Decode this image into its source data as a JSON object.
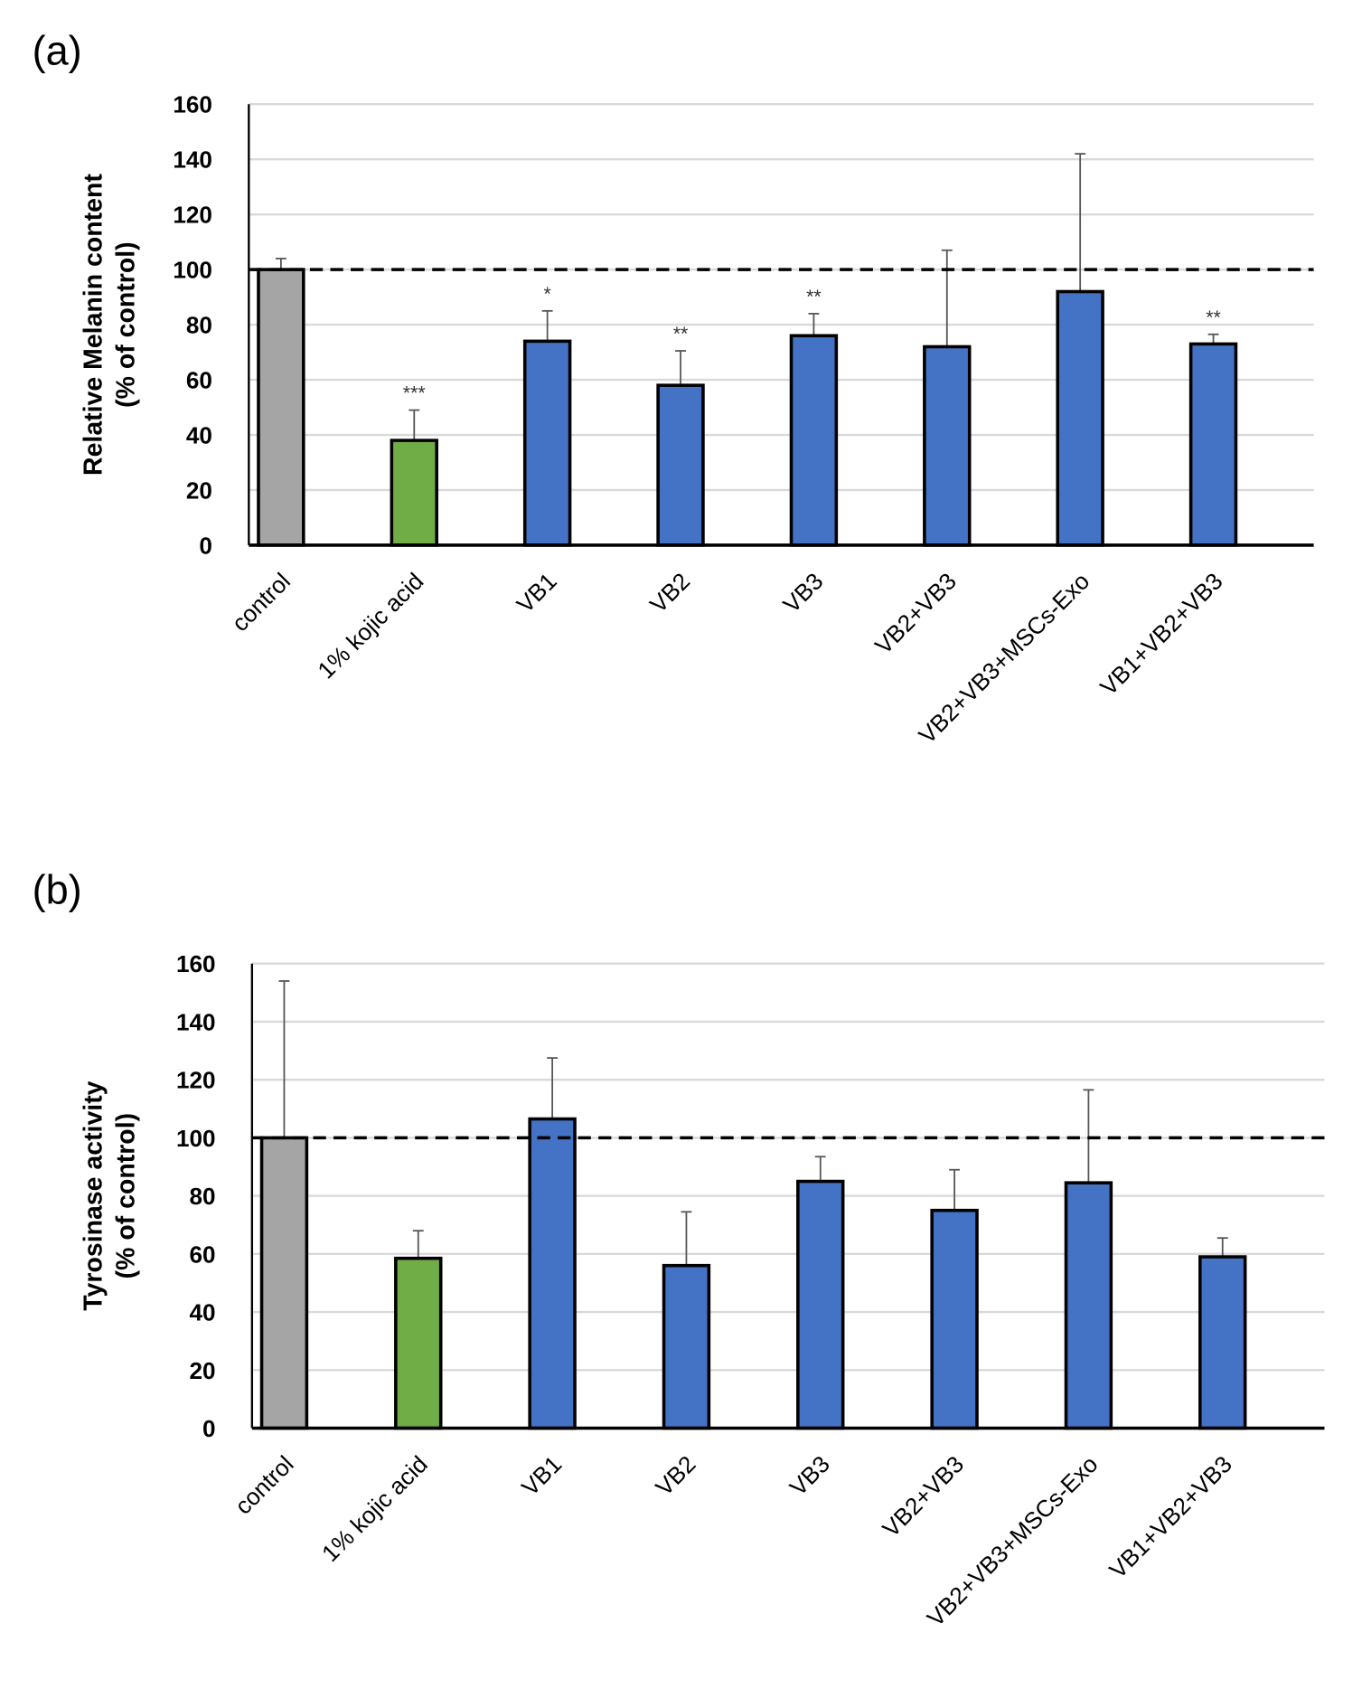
{
  "chart_data": [
    {
      "type": "bar",
      "panel_label": "(a)",
      "ylabel_line1": "Relative Melanin content",
      "ylabel_line2": "(% of control)",
      "xlabel": "",
      "ylim": [
        0,
        160
      ],
      "yticks": [
        "0",
        "20",
        "40",
        "60",
        "80",
        "100",
        "120",
        "140",
        "160"
      ],
      "grid": true,
      "reference_line": 100,
      "categories": [
        "control",
        "1% kojic acid",
        "VB1",
        "VB2",
        "VB3",
        "VB2+VB3",
        "VB2+VB3+MSCs-Exo",
        "VB1+VB2+VB3"
      ],
      "values": [
        100,
        38,
        74,
        58,
        76,
        72,
        92,
        73
      ],
      "error_upper": [
        104,
        49,
        85,
        70.5,
        84,
        107,
        142,
        76.5
      ],
      "significance": [
        "",
        "***",
        "*",
        "**",
        "**",
        "",
        "",
        "**"
      ],
      "colors": [
        "#a5a5a5",
        "#70ad47",
        "#4472c4",
        "#4472c4",
        "#4472c4",
        "#4472c4",
        "#4472c4",
        "#4472c4"
      ]
    },
    {
      "type": "bar",
      "panel_label": "(b)",
      "ylabel_line1": "Tyrosinase activity",
      "ylabel_line2": "(% of control)",
      "xlabel": "",
      "ylim": [
        0,
        160
      ],
      "yticks": [
        "0",
        "20",
        "40",
        "60",
        "80",
        "100",
        "120",
        "140",
        "160"
      ],
      "grid": true,
      "reference_line": 100,
      "categories": [
        "control",
        "1% kojic acid",
        "VB1",
        "VB2",
        "VB3",
        "VB2+VB3",
        "VB2+VB3+MSCs-Exo",
        "VB1+VB2+VB3"
      ],
      "values": [
        100,
        58.5,
        106.5,
        56,
        85,
        75,
        84.5,
        59
      ],
      "error_upper": [
        154,
        68,
        127.5,
        74.5,
        93.5,
        89,
        116.5,
        65.5
      ],
      "significance": [
        "",
        "",
        "",
        "",
        "",
        "",
        "",
        ""
      ],
      "colors": [
        "#a5a5a5",
        "#70ad47",
        "#4472c4",
        "#4472c4",
        "#4472c4",
        "#4472c4",
        "#4472c4",
        "#4472c4"
      ]
    }
  ]
}
